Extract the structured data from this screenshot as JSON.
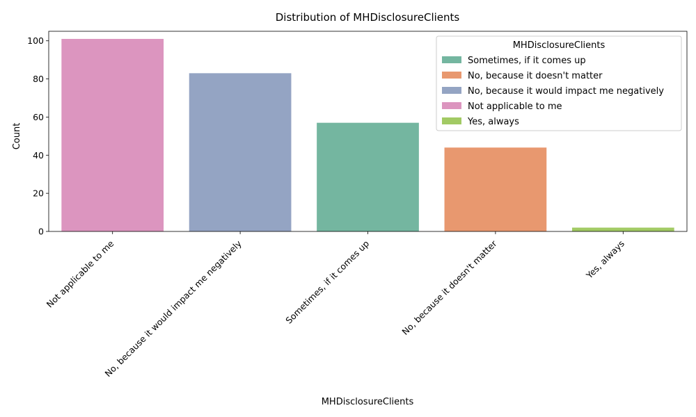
{
  "chart_data": {
    "type": "bar",
    "title": "Distribution of MHDisclosureClients",
    "xlabel": "MHDisclosureClients",
    "ylabel": "Count",
    "ylim": [
      0,
      105
    ],
    "yticks": [
      0,
      20,
      40,
      60,
      80,
      100
    ],
    "categories": [
      "Not applicable to me",
      "No, because it would impact me negatively",
      "Sometimes, if it comes up",
      "No, because it doesn't matter",
      "Yes, always"
    ],
    "values": [
      101,
      83,
      57,
      44,
      2
    ],
    "colors": [
      "#dc95bf",
      "#94a4c3",
      "#74b6a0",
      "#e8986f",
      "#a2ca64"
    ],
    "grid": false,
    "legend": {
      "title": "MHDisclosureClients",
      "position": "top-right",
      "entries": [
        {
          "label": "Sometimes, if it comes up",
          "color": "#74b6a0"
        },
        {
          "label": "No, because it doesn't matter",
          "color": "#e8986f"
        },
        {
          "label": "No, because it would impact me negatively",
          "color": "#94a4c3"
        },
        {
          "label": "Not applicable to me",
          "color": "#dc95bf"
        },
        {
          "label": "Yes, always",
          "color": "#a2ca64"
        }
      ]
    }
  }
}
